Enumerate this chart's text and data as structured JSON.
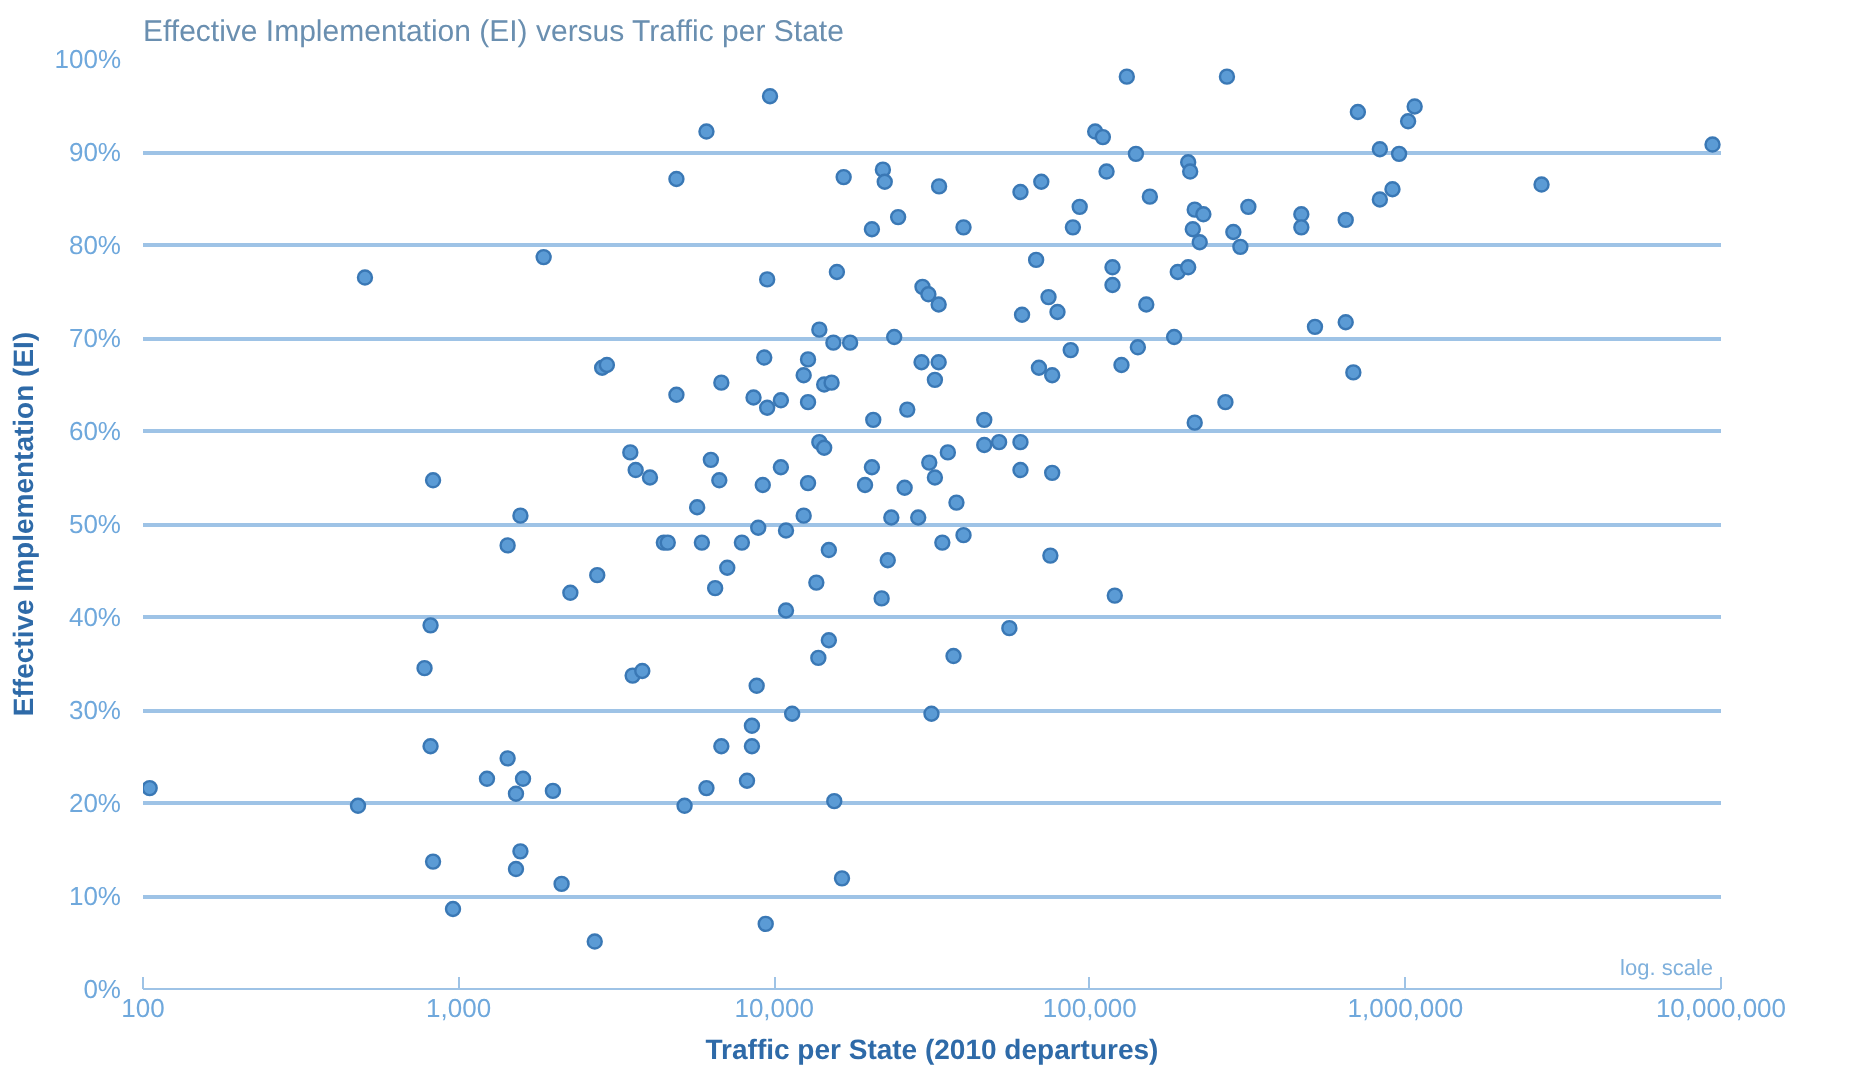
{
  "chart_data": {
    "type": "scatter",
    "title": "Effective Implementation (EI) versus Traffic per State",
    "xlabel": "Traffic per State (2010 departures)",
    "ylabel": "Effective Implementation (EI)",
    "annotations": [
      "log. scale"
    ],
    "log": "x",
    "grid": "y",
    "marker": "circle",
    "xlim": [
      100,
      10000000
    ],
    "ylim": [
      0,
      100
    ],
    "xticks": [
      {
        "value": 100,
        "label": "100"
      },
      {
        "value": 1000,
        "label": "1,000"
      },
      {
        "value": 10000,
        "label": "10,000"
      },
      {
        "value": 100000,
        "label": "100,000"
      },
      {
        "value": 1000000,
        "label": "1,000,000"
      },
      {
        "value": 10000000,
        "label": "10,000,000"
      }
    ],
    "yticks": [
      {
        "value": 0,
        "label": "0%"
      },
      {
        "value": 10,
        "label": "10%"
      },
      {
        "value": 20,
        "label": "20%"
      },
      {
        "value": 30,
        "label": "30%"
      },
      {
        "value": 40,
        "label": "40%"
      },
      {
        "value": 50,
        "label": "50%"
      },
      {
        "value": 60,
        "label": "60%"
      },
      {
        "value": 70,
        "label": "70%"
      },
      {
        "value": 80,
        "label": "80%"
      },
      {
        "value": 90,
        "label": "90%"
      },
      {
        "value": 100,
        "label": "100%"
      }
    ],
    "series": [
      {
        "color": "#5b9bd5",
        "x": [
          505,
          1860,
          2850,
          830,
          1570,
          1430,
          2750,
          2260,
          815,
          780,
          815,
          1430,
          1230,
          1600,
          1520,
          1990,
          105,
          480,
          830,
          1570,
          1520,
          2120,
          960,
          2700,
          9700,
          6100,
          4900,
          16600,
          22100,
          22400,
          33300,
          20400,
          24700,
          39800,
          9500,
          15800,
          29500,
          30800,
          33200,
          13900,
          15400,
          17400,
          24000,
          2950,
          9300,
          12800,
          12400,
          29300,
          33200,
          32300,
          6800,
          4900,
          8600,
          9500,
          10500,
          12800,
          14400,
          15200,
          20600,
          26400,
          13900,
          14400,
          3500,
          3640,
          4040,
          6300,
          6700,
          9200,
          10500,
          12800,
          20400,
          19400,
          25900,
          31000,
          32300,
          35500,
          37800,
          46300,
          46300,
          5700,
          12400,
          4470,
          4600,
          5900,
          7900,
          8900,
          10900,
          23500,
          28600,
          34100,
          39800,
          14900,
          22900,
          7100,
          6500,
          13600,
          21900,
          10900,
          14900,
          13800,
          37000,
          3560,
          3820,
          8800,
          11400,
          31500,
          8500,
          6800,
          8500,
          8200,
          6100,
          5200,
          15500,
          16400,
          9400,
          131000,
          272000,
          104000,
          110000,
          140000,
          113000,
          60300,
          70200,
          92900,
          88400,
          155000,
          205000,
          208000,
          215000,
          229000,
          212000,
          223000,
          318000,
          285000,
          300000,
          468000,
          468000,
          647000,
          707000,
          830000,
          955000,
          830000,
          910000,
          1020000,
          1070000,
          67600,
          118000,
          118000,
          190000,
          205000,
          61000,
          74000,
          79000,
          87000,
          151000,
          142000,
          185000,
          126000,
          69000,
          76000,
          517000,
          647000,
          684000,
          51600,
          60300,
          60300,
          76000,
          75000,
          120000,
          55600,
          215000,
          269000,
          2700000,
          9400000
        ],
        "values": [
          76.5,
          78.7,
          66.8,
          54.7,
          50.9,
          47.7,
          44.5,
          42.6,
          39.1,
          34.5,
          26.1,
          24.8,
          22.6,
          22.6,
          21.0,
          21.3,
          21.6,
          19.7,
          13.7,
          14.8,
          12.9,
          11.3,
          8.6,
          5.1,
          96.0,
          92.2,
          87.1,
          87.3,
          88.1,
          86.8,
          86.3,
          81.7,
          83.0,
          81.9,
          76.3,
          77.1,
          75.5,
          74.7,
          73.6,
          70.9,
          69.5,
          69.5,
          70.1,
          67.1,
          67.9,
          67.7,
          66.0,
          67.4,
          67.4,
          65.5,
          65.2,
          63.9,
          63.6,
          62.5,
          63.3,
          63.1,
          65.0,
          65.2,
          61.2,
          62.3,
          58.8,
          58.2,
          57.7,
          55.8,
          55.0,
          56.9,
          54.7,
          54.2,
          56.1,
          54.4,
          56.1,
          54.2,
          53.9,
          56.6,
          55.0,
          57.7,
          52.3,
          61.2,
          58.5,
          51.8,
          50.9,
          48.0,
          48.0,
          48.0,
          48.0,
          49.6,
          49.3,
          50.7,
          50.7,
          48.0,
          48.8,
          47.2,
          46.1,
          45.3,
          43.1,
          43.7,
          42.0,
          40.7,
          37.5,
          35.6,
          35.8,
          33.7,
          34.2,
          32.6,
          29.6,
          29.6,
          28.3,
          26.1,
          26.1,
          22.4,
          21.6,
          19.7,
          20.2,
          11.9,
          7.0,
          98.1,
          98.1,
          92.2,
          91.6,
          89.8,
          87.9,
          85.7,
          86.8,
          84.1,
          81.9,
          85.2,
          88.9,
          87.9,
          83.8,
          83.3,
          81.7,
          80.3,
          84.1,
          81.4,
          79.8,
          83.3,
          81.9,
          82.7,
          94.3,
          90.3,
          89.8,
          84.9,
          86.0,
          93.3,
          94.9,
          78.4,
          77.6,
          75.7,
          77.1,
          77.6,
          72.5,
          74.4,
          72.8,
          68.7,
          73.6,
          69.0,
          70.1,
          67.1,
          66.8,
          66.0,
          71.2,
          71.7,
          66.3,
          58.8,
          58.8,
          55.8,
          55.5,
          46.6,
          42.3,
          38.8,
          60.9,
          63.1,
          86.5,
          90.8
        ]
      }
    ]
  }
}
